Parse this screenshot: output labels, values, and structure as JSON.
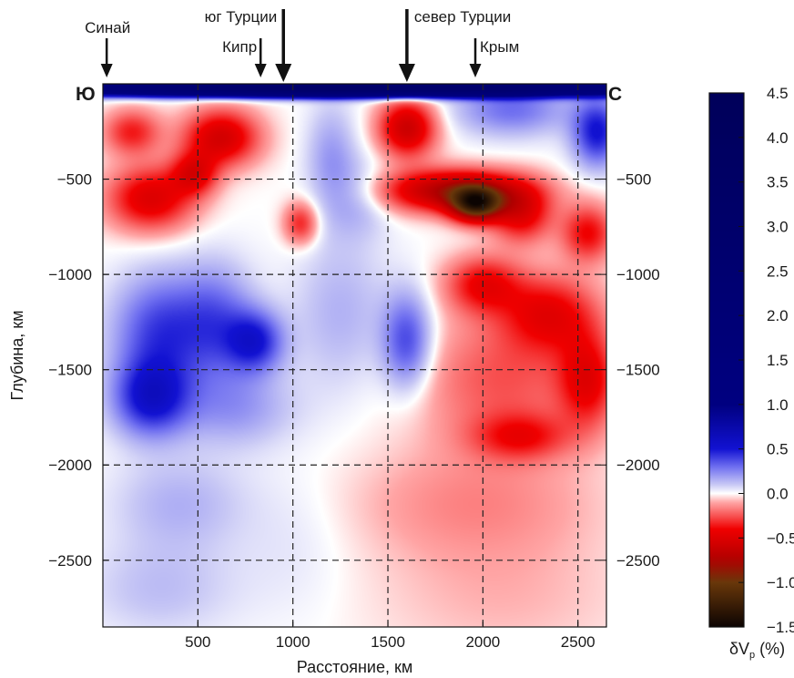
{
  "chart_data": {
    "type": "heatmap",
    "xlabel": "Расстояние, км",
    "ylabel": "Глубина, км",
    "x_ticks": [
      500,
      1000,
      1500,
      2000,
      2500
    ],
    "y_ticks": [
      -500,
      -1000,
      -1500,
      -2000,
      -2500
    ],
    "xlim": [
      0,
      2650
    ],
    "ylim": [
      -2850,
      0
    ],
    "grid": "dashed at tick positions",
    "corner_labels": {
      "left": "Ю",
      "right": "С"
    },
    "markers": [
      {
        "label": "Синай",
        "x": 20,
        "size": "small",
        "row": "upper"
      },
      {
        "label": "Кипр",
        "x": 830,
        "size": "small",
        "row": "lower"
      },
      {
        "label": "юг Турции",
        "x": 950,
        "size": "large",
        "row": "upper"
      },
      {
        "label": "север Турции",
        "x": 1600,
        "size": "large",
        "row": "upper"
      },
      {
        "label": "Крым",
        "x": 1960,
        "size": "small",
        "row": "lower"
      }
    ],
    "colorbar": {
      "label": "δV",
      "label_sub": "p",
      "label_unit": " (%)",
      "min": -1.5,
      "max": 4.5,
      "ticks": [
        "4.5",
        "4.0",
        "3.5",
        "3.0",
        "2.5",
        "2.0",
        "1.5",
        "1.0",
        "0.5",
        "0.0",
        "−0.5",
        "−1.0",
        "−1.5"
      ],
      "tick_values": [
        4.5,
        4.0,
        3.5,
        3.0,
        2.5,
        2.0,
        1.5,
        1.0,
        0.5,
        0.0,
        -0.5,
        -1.0,
        -1.5
      ]
    },
    "anomalies": [
      {
        "x": 1300,
        "y": -20,
        "rx": 1600,
        "ry": 40,
        "v": 3.2
      },
      {
        "x": 150,
        "y": -250,
        "rx": 150,
        "ry": 120,
        "v": -0.35
      },
      {
        "x": 620,
        "y": -280,
        "rx": 200,
        "ry": 150,
        "v": -0.55
      },
      {
        "x": 250,
        "y": -600,
        "rx": 230,
        "ry": 170,
        "v": -0.5
      },
      {
        "x": 480,
        "y": -470,
        "rx": 120,
        "ry": 110,
        "v": -0.4
      },
      {
        "x": 1040,
        "y": -730,
        "rx": 90,
        "ry": 110,
        "v": -0.35
      },
      {
        "x": 1600,
        "y": -230,
        "rx": 150,
        "ry": 150,
        "v": -0.6
      },
      {
        "x": 1850,
        "y": -560,
        "rx": 370,
        "ry": 110,
        "v": -0.75
      },
      {
        "x": 1960,
        "y": -630,
        "rx": 130,
        "ry": 90,
        "v": -1.0
      },
      {
        "x": 2200,
        "y": -680,
        "rx": 160,
        "ry": 150,
        "v": -0.45
      },
      {
        "x": 2550,
        "y": -780,
        "rx": 140,
        "ry": 150,
        "v": -0.4
      },
      {
        "x": 2000,
        "y": -1050,
        "rx": 200,
        "ry": 150,
        "v": -0.4
      },
      {
        "x": 2350,
        "y": -1200,
        "rx": 250,
        "ry": 200,
        "v": -0.4
      },
      {
        "x": 2550,
        "y": -1550,
        "rx": 150,
        "ry": 250,
        "v": -0.4
      },
      {
        "x": 2200,
        "y": -1850,
        "rx": 250,
        "ry": 120,
        "v": -0.3
      },
      {
        "x": 2100,
        "y": -1550,
        "rx": 450,
        "ry": 350,
        "v": -0.25
      },
      {
        "x": 1950,
        "y": -2200,
        "rx": 650,
        "ry": 300,
        "v": -0.15
      },
      {
        "x": 2100,
        "y": -2700,
        "rx": 700,
        "ry": 350,
        "v": -0.08
      },
      {
        "x": 2600,
        "y": -250,
        "rx": 130,
        "ry": 180,
        "v": 0.5
      },
      {
        "x": 2150,
        "y": -130,
        "rx": 300,
        "ry": 140,
        "v": 0.3
      },
      {
        "x": 1200,
        "y": -400,
        "rx": 130,
        "ry": 300,
        "v": 0.2
      },
      {
        "x": 1350,
        "y": -600,
        "rx": 150,
        "ry": 200,
        "v": 0.15
      },
      {
        "x": 300,
        "y": -1300,
        "rx": 250,
        "ry": 300,
        "v": 0.4
      },
      {
        "x": 250,
        "y": -1650,
        "rx": 200,
        "ry": 200,
        "v": 0.5
      },
      {
        "x": 800,
        "y": -1350,
        "rx": 150,
        "ry": 160,
        "v": 0.45
      },
      {
        "x": 600,
        "y": -1250,
        "rx": 200,
        "ry": 300,
        "v": 0.3
      },
      {
        "x": 700,
        "y": -1700,
        "rx": 300,
        "ry": 200,
        "v": 0.2
      },
      {
        "x": 1600,
        "y": -1350,
        "rx": 130,
        "ry": 250,
        "v": 0.4
      },
      {
        "x": 1250,
        "y": -1200,
        "rx": 250,
        "ry": 400,
        "v": 0.15
      },
      {
        "x": 400,
        "y": -2200,
        "rx": 350,
        "ry": 250,
        "v": 0.15
      },
      {
        "x": 300,
        "y": -2650,
        "rx": 400,
        "ry": 250,
        "v": 0.12
      },
      {
        "x": 1000,
        "y": -2400,
        "rx": 300,
        "ry": 400,
        "v": 0.05
      }
    ]
  }
}
